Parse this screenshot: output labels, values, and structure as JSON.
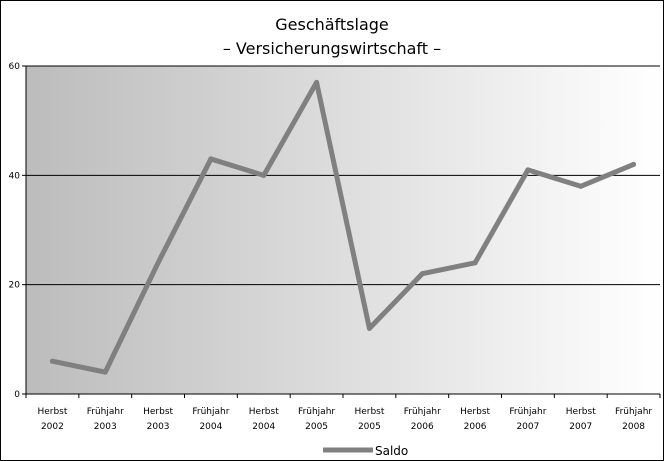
{
  "chart_data": {
    "type": "line",
    "title": "Geschäftslage",
    "subtitle": "– Versicherungswirtschaft –",
    "xlabel": "",
    "ylabel": "",
    "ylim": [
      0,
      60
    ],
    "y_ticks": [
      0,
      20,
      40,
      60
    ],
    "grid": true,
    "legend_position": "bottom",
    "categories": [
      [
        "Herbst",
        "2002"
      ],
      [
        "Frühjahr",
        "2003"
      ],
      [
        "Herbst",
        "2003"
      ],
      [
        "Frühjahr",
        "2004"
      ],
      [
        "Herbst",
        "2004"
      ],
      [
        "Frühjahr",
        "2005"
      ],
      [
        "Herbst",
        "2005"
      ],
      [
        "Frühjahr",
        "2006"
      ],
      [
        "Herbst",
        "2006"
      ],
      [
        "Frühjahr",
        "2007"
      ],
      [
        "Herbst",
        "2007"
      ],
      [
        "Frühjahr",
        "2008"
      ]
    ],
    "series": [
      {
        "name": "Saldo",
        "color": "#808080",
        "values": [
          6,
          4,
          24,
          43,
          40,
          57,
          12,
          22,
          24,
          41,
          38,
          42
        ]
      }
    ]
  }
}
